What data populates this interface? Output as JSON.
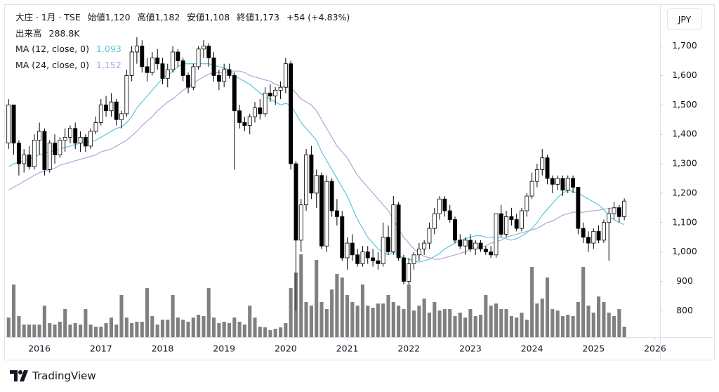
{
  "header": {
    "symbol": "大庄 · 1月 · TSE",
    "open_label": "始値",
    "open": "1,120",
    "high_label": "高値",
    "high": "1,182",
    "low_label": "安値",
    "low": "1,108",
    "close_label": "終値",
    "close": "1,173",
    "change": "+54 (+4.83%)",
    "volume_label": "出来高",
    "volume": "288.8K"
  },
  "currency": "JPY",
  "brand": "TradingView",
  "chart_data": {
    "type": "candlestick",
    "x": [
      2015.5,
      2015.583,
      2015.667,
      2015.75,
      2015.833,
      2015.917,
      2016,
      2016.083,
      2016.167,
      2016.25,
      2016.333,
      2016.417,
      2016.5,
      2016.583,
      2016.667,
      2016.75,
      2016.833,
      2016.917,
      2017,
      2017.083,
      2017.167,
      2017.25,
      2017.333,
      2017.417,
      2017.5,
      2017.583,
      2017.667,
      2017.75,
      2017.833,
      2017.917,
      2018,
      2018.083,
      2018.167,
      2018.25,
      2018.333,
      2018.417,
      2018.5,
      2018.583,
      2018.667,
      2018.75,
      2018.833,
      2018.917,
      2019,
      2019.083,
      2019.167,
      2019.25,
      2019.333,
      2019.417,
      2019.5,
      2019.583,
      2019.667,
      2019.75,
      2019.833,
      2019.917,
      2020,
      2020.083,
      2020.167,
      2020.25,
      2020.333,
      2020.417,
      2020.5,
      2020.583,
      2020.667,
      2020.75,
      2020.833,
      2020.917,
      2021,
      2021.083,
      2021.167,
      2021.25,
      2021.333,
      2021.417,
      2021.5,
      2021.583,
      2021.667,
      2021.75,
      2021.833,
      2021.917,
      2022,
      2022.083,
      2022.167,
      2022.25,
      2022.333,
      2022.417,
      2022.5,
      2022.583,
      2022.667,
      2022.75,
      2022.833,
      2022.917,
      2023,
      2023.083,
      2023.167,
      2023.25,
      2023.333,
      2023.417,
      2023.5,
      2023.583,
      2023.667,
      2023.75,
      2023.833,
      2023.917,
      2024,
      2024.083,
      2024.167,
      2024.25,
      2024.333,
      2024.417,
      2024.5,
      2024.583,
      2024.667,
      2024.75,
      2024.833,
      2024.917,
      2025,
      2025.083,
      2025.167,
      2025.25,
      2025.333,
      2025.417,
      2025.5
    ],
    "open": [
      1370,
      1500,
      1370,
      1300,
      1330,
      1290,
      1380,
      1410,
      1280,
      1370,
      1330,
      1380,
      1390,
      1420,
      1370,
      1390,
      1360,
      1410,
      1440,
      1500,
      1480,
      1510,
      1450,
      1470,
      1600,
      1680,
      1700,
      1630,
      1610,
      1660,
      1640,
      1590,
      1620,
      1680,
      1650,
      1600,
      1560,
      1630,
      1690,
      1700,
      1660,
      1600,
      1580,
      1620,
      1600,
      1480,
      1440,
      1430,
      1460,
      1490,
      1470,
      1540,
      1530,
      1550,
      1560,
      1640,
      1300,
      1040,
      1160,
      1330,
      1200,
      1260,
      1020,
      1240,
      1140,
      1120,
      980,
      1030,
      990,
      960,
      1000,
      980,
      970,
      960,
      1050,
      1000,
      1160,
      980,
      900,
      960,
      990,
      1010,
      1030,
      1080,
      1130,
      1180,
      1140,
      1110,
      1040,
      1020,
      1040,
      1010,
      1030,
      1010,
      1000,
      990,
      1130,
      1060,
      1120,
      1110,
      1080,
      1140,
      1190,
      1240,
      1280,
      1320,
      1250,
      1230,
      1250,
      1210,
      1250,
      1220,
      1080,
      1050,
      1030,
      1070,
      1040,
      1100,
      1130,
      1150,
      1120
    ],
    "high": [
      1520,
      1500,
      1380,
      1350,
      1360,
      1400,
      1440,
      1420,
      1380,
      1400,
      1390,
      1420,
      1430,
      1440,
      1410,
      1400,
      1420,
      1460,
      1520,
      1530,
      1540,
      1520,
      1480,
      1620,
      1700,
      1730,
      1720,
      1660,
      1680,
      1690,
      1660,
      1640,
      1700,
      1690,
      1660,
      1610,
      1640,
      1700,
      1720,
      1710,
      1680,
      1620,
      1640,
      1640,
      1610,
      1500,
      1460,
      1470,
      1510,
      1520,
      1560,
      1570,
      1560,
      1580,
      1660,
      1650,
      1310,
      1180,
      1350,
      1360,
      1280,
      1270,
      1260,
      1250,
      1180,
      1140,
      1050,
      1060,
      1010,
      1020,
      1020,
      1010,
      1000,
      1100,
      1090,
      1190,
      1170,
      990,
      980,
      1000,
      1030,
      1040,
      1100,
      1150,
      1190,
      1190,
      1160,
      1120,
      1060,
      1050,
      1060,
      1040,
      1040,
      1020,
      1020,
      1130,
      1160,
      1140,
      1150,
      1130,
      1150,
      1200,
      1270,
      1300,
      1350,
      1330,
      1260,
      1260,
      1260,
      1260,
      1260,
      1220,
      1100,
      1070,
      1080,
      1090,
      1110,
      1150,
      1170,
      1160,
      1182
    ],
    "low": [
      1350,
      1330,
      1260,
      1270,
      1280,
      1280,
      1330,
      1260,
      1270,
      1300,
      1320,
      1340,
      1370,
      1350,
      1340,
      1340,
      1350,
      1400,
      1430,
      1460,
      1460,
      1430,
      1420,
      1460,
      1580,
      1640,
      1610,
      1580,
      1600,
      1620,
      1570,
      1560,
      1610,
      1630,
      1580,
      1540,
      1550,
      1620,
      1660,
      1630,
      1580,
      1550,
      1560,
      1590,
      1280,
      1420,
      1410,
      1400,
      1440,
      1450,
      1460,
      1510,
      1500,
      1520,
      1540,
      1280,
      800,
      1000,
      1140,
      1180,
      1150,
      1010,
      1000,
      1120,
      1090,
      970,
      940,
      970,
      950,
      950,
      960,
      950,
      940,
      950,
      990,
      990,
      970,
      890,
      890,
      940,
      970,
      990,
      1010,
      1060,
      1110,
      1120,
      1100,
      1030,
      1010,
      990,
      1000,
      990,
      1000,
      990,
      980,
      980,
      1050,
      1050,
      1090,
      1070,
      1070,
      1120,
      1180,
      1220,
      1260,
      1230,
      1200,
      1210,
      1190,
      1200,
      1200,
      1060,
      1030,
      1000,
      1010,
      1030,
      1030,
      970,
      1110,
      1100,
      1108
    ],
    "close": [
      1500,
      1370,
      1300,
      1330,
      1290,
      1380,
      1410,
      1280,
      1370,
      1330,
      1380,
      1390,
      1420,
      1370,
      1390,
      1360,
      1410,
      1440,
      1500,
      1480,
      1510,
      1450,
      1470,
      1600,
      1680,
      1700,
      1630,
      1610,
      1660,
      1640,
      1590,
      1620,
      1680,
      1650,
      1600,
      1560,
      1630,
      1690,
      1700,
      1660,
      1600,
      1580,
      1620,
      1600,
      1480,
      1440,
      1430,
      1460,
      1490,
      1470,
      1540,
      1530,
      1550,
      1560,
      1640,
      1300,
      1040,
      1160,
      1330,
      1200,
      1260,
      1020,
      1240,
      1140,
      1120,
      980,
      1030,
      990,
      960,
      1000,
      980,
      970,
      960,
      1050,
      1000,
      1160,
      980,
      900,
      960,
      990,
      1010,
      1030,
      1080,
      1130,
      1180,
      1140,
      1110,
      1040,
      1020,
      1040,
      1010,
      1030,
      1010,
      1000,
      990,
      1130,
      1060,
      1120,
      1110,
      1080,
      1140,
      1190,
      1240,
      1280,
      1320,
      1250,
      1230,
      1250,
      1210,
      1250,
      1220,
      1080,
      1050,
      1030,
      1070,
      1040,
      1100,
      1130,
      1150,
      1120,
      1173
    ],
    "volume": [
      539000,
      1444000,
      578000,
      347000,
      347000,
      347000,
      347000,
      866000,
      385000,
      347000,
      424000,
      770000,
      347000,
      385000,
      347000,
      770000,
      347000,
      289000,
      289000,
      385000,
      539000,
      347000,
      1155000,
      539000,
      385000,
      424000,
      424000,
      1348000,
      578000,
      347000,
      481000,
      481000,
      1155000,
      539000,
      481000,
      424000,
      539000,
      616000,
      578000,
      1348000,
      539000,
      385000,
      424000,
      385000,
      539000,
      424000,
      347000,
      866000,
      539000,
      289000,
      270000,
      193000,
      231000,
      270000,
      385000,
      1348000,
      1771000,
      2272000,
      963000,
      866000,
      2118000,
      963000,
      770000,
      1309000,
      1733000,
      1636000,
      1155000,
      963000,
      866000,
      1444000,
      866000,
      809000,
      924000,
      924000,
      1155000,
      963000,
      866000,
      770000,
      1444000,
      732000,
      866000,
      1059000,
      674000,
      963000,
      732000,
      770000,
      770000,
      578000,
      674000,
      539000,
      770000,
      578000,
      616000,
      1155000,
      866000,
      924000,
      770000,
      770000,
      578000,
      539000,
      674000,
      481000,
      1925000,
      924000,
      1059000,
      1636000,
      770000,
      732000,
      578000,
      616000,
      578000,
      963000,
      1925000,
      866000,
      674000,
      1117000,
      963000,
      674000,
      578000,
      770000,
      288800
    ],
    "up_color": "#ffffff",
    "down_color": "#000000",
    "volume_color": "#808080",
    "series": [
      {
        "name": "MA (12, close, 0)",
        "color": "#5bc8d6",
        "legend_value": "1,093",
        "values": [
          1290,
          1300,
          1305,
          1310,
          1315,
          1325,
          1330,
          1335,
          1340,
          1345,
          1350,
          1355,
          1360,
          1365,
          1370,
          1372,
          1375,
          1380,
          1390,
          1400,
          1410,
          1420,
          1425,
          1440,
          1460,
          1490,
          1510,
          1530,
          1550,
          1570,
          1590,
          1600,
          1615,
          1630,
          1640,
          1640,
          1640,
          1640,
          1640,
          1640,
          1635,
          1630,
          1625,
          1620,
          1600,
          1590,
          1580,
          1570,
          1555,
          1540,
          1530,
          1520,
          1510,
          1500,
          1505,
          1500,
          1470,
          1440,
          1420,
          1400,
          1380,
          1340,
          1310,
          1280,
          1250,
          1220,
          1190,
          1150,
          1110,
          1080,
          1050,
          1030,
          1010,
          1000,
          990,
          1000,
          990,
          980,
          975,
          970,
          965,
          970,
          975,
          985,
          995,
          1010,
          1020,
          1030,
          1040,
          1045,
          1050,
          1055,
          1055,
          1050,
          1050,
          1050,
          1050,
          1045,
          1040,
          1045,
          1055,
          1065,
          1080,
          1100,
          1125,
          1145,
          1165,
          1185,
          1200,
          1210,
          1205,
          1200,
          1190,
          1180,
          1170,
          1160,
          1145,
          1120,
          1110,
          1100,
          1093
        ]
      },
      {
        "name": "MA (24, close, 0)",
        "color": "#b3a3d8",
        "legend_value": "1,152",
        "values": [
          1210,
          1220,
          1230,
          1240,
          1250,
          1260,
          1270,
          1275,
          1280,
          1285,
          1295,
          1300,
          1305,
          1310,
          1315,
          1320,
          1325,
          1330,
          1340,
          1345,
          1350,
          1360,
          1370,
          1380,
          1395,
          1410,
          1430,
          1445,
          1460,
          1480,
          1495,
          1510,
          1520,
          1535,
          1550,
          1560,
          1575,
          1585,
          1595,
          1605,
          1610,
          1610,
          1610,
          1615,
          1615,
          1615,
          1610,
          1600,
          1595,
          1590,
          1585,
          1580,
          1570,
          1565,
          1560,
          1560,
          1540,
          1520,
          1510,
          1500,
          1480,
          1450,
          1420,
          1390,
          1360,
          1340,
          1320,
          1290,
          1260,
          1240,
          1220,
          1200,
          1180,
          1160,
          1140,
          1110,
          1080,
          1050,
          1030,
          1010,
          995,
          985,
          980,
          975,
          975,
          980,
          985,
          990,
          995,
          1000,
          1010,
          1015,
          1015,
          1020,
          1030,
          1035,
          1040,
          1050,
          1055,
          1060,
          1065,
          1070,
          1075,
          1080,
          1090,
          1100,
          1105,
          1115,
          1125,
          1130,
          1135,
          1135,
          1135,
          1138,
          1140,
          1142,
          1145,
          1148,
          1150,
          1152,
          1152
        ]
      }
    ],
    "xlim": [
      2015.44,
      2026.08
    ],
    "xticks": [
      2016,
      2017,
      2018,
      2019,
      2020,
      2021,
      2022,
      2023,
      2024,
      2025,
      2026
    ],
    "ylim": [
      710,
      1840
    ],
    "yticks": [
      {
        "value": 800,
        "label": "800"
      },
      {
        "value": 900,
        "label": "900"
      },
      {
        "value": 1000,
        "label": "1,000"
      },
      {
        "value": 1100,
        "label": "1,100"
      },
      {
        "value": 1200,
        "label": "1,200"
      },
      {
        "value": 1300,
        "label": "1,300"
      },
      {
        "value": 1400,
        "label": "1,400"
      },
      {
        "value": 1500,
        "label": "1,500"
      },
      {
        "value": 1600,
        "label": "1,600"
      },
      {
        "value": 1700,
        "label": "1,700"
      }
    ]
  }
}
